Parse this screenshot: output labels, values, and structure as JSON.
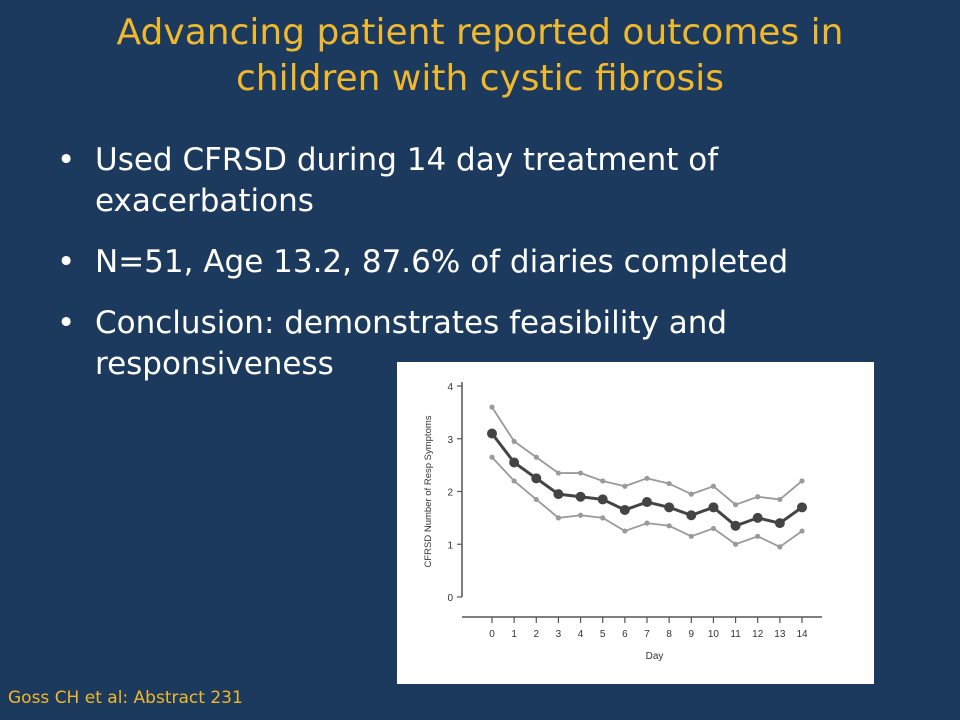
{
  "slide": {
    "title_lines": [
      "Advancing patient reported outcomes in",
      "children with cystic fibrosis"
    ],
    "bullets": [
      "Used CFRSD during 14 day treatment of exacerbations",
      "N=51, Age 13.2, 87.6% of diaries completed",
      "Conclusion: demonstrates feasibility and responsiveness"
    ],
    "citation": "Goss CH et al: Abstract 231",
    "colors": {
      "background": "#1c3a5e",
      "title": "#f0b82c",
      "text": "#ffffff"
    }
  },
  "chart_data": {
    "type": "line",
    "xlabel": "Day",
    "ylabel": "CFRSD Number of Resp Symptoms",
    "x": [
      0,
      1,
      2,
      3,
      4,
      5,
      6,
      7,
      8,
      9,
      10,
      11,
      12,
      13,
      14
    ],
    "xticks": [
      "0",
      "1",
      "2",
      "3",
      "4",
      "5",
      "6",
      "7",
      "8",
      "9",
      "10",
      "11",
      "12",
      "13",
      "14"
    ],
    "yticks": [
      "0",
      "1",
      "2",
      "3",
      "4"
    ],
    "ylim": [
      0,
      4
    ],
    "grid": false,
    "series": [
      {
        "role": "upper",
        "values": [
          3.6,
          2.95,
          2.65,
          2.35,
          2.35,
          2.2,
          2.1,
          2.25,
          2.15,
          1.95,
          2.1,
          1.75,
          1.9,
          1.85,
          2.2
        ]
      },
      {
        "role": "mean",
        "values": [
          3.1,
          2.55,
          2.25,
          1.95,
          1.9,
          1.85,
          1.65,
          1.8,
          1.7,
          1.55,
          1.7,
          1.35,
          1.5,
          1.4,
          1.7
        ]
      },
      {
        "role": "lower",
        "values": [
          2.65,
          2.2,
          1.85,
          1.5,
          1.55,
          1.5,
          1.25,
          1.4,
          1.35,
          1.15,
          1.3,
          1.0,
          1.15,
          0.95,
          1.25
        ]
      }
    ],
    "colors": {
      "mean": "#444444",
      "bounds": "#9a9a9a",
      "axis": "#555555"
    }
  }
}
